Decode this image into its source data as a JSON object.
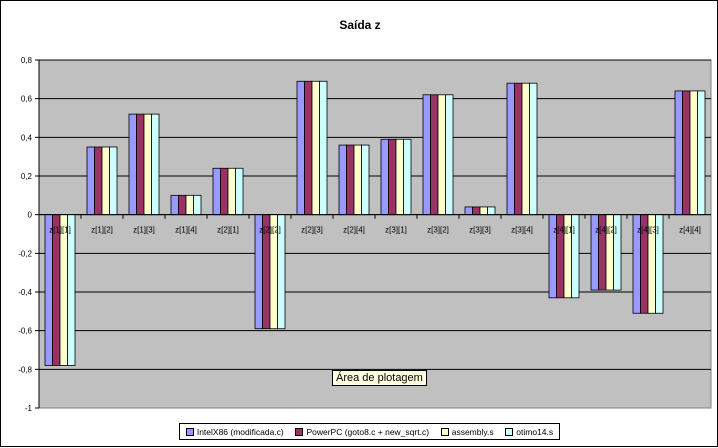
{
  "chart_data": {
    "type": "bar",
    "title": "Saída z",
    "xlabel": "",
    "ylabel": "",
    "ylim": [
      -1,
      0.8
    ],
    "yticks": [
      0.8,
      0.6,
      0.4,
      0.2,
      0,
      -0.2,
      -0.4,
      -0.6,
      -0.8,
      -1
    ],
    "ytick_labels": [
      "0,8",
      "0,6",
      "0,4",
      "0,2",
      "0",
      "-0,2",
      "-0,4",
      "-0,6",
      "-0,8",
      "-1"
    ],
    "grid": "horizontal major",
    "legend_position": "bottom",
    "plot_background": "#c0c0c0",
    "categories": [
      "z[1][1]",
      "z[1][2]",
      "z[1][3]",
      "z[1][4]",
      "z[2][1]",
      "z[2][2]",
      "z[2][3]",
      "z[2][4]",
      "z[3][1]",
      "z[3][2]",
      "z[3][3]",
      "z[3][4]",
      "z[4][1]",
      "z[4][2]",
      "z[4][3]",
      "z[4][4]"
    ],
    "series": [
      {
        "name": "IntelX86 (modificada.c)",
        "color": "#9999ff",
        "values": [
          -0.78,
          0.35,
          0.52,
          0.1,
          0.24,
          -0.59,
          0.69,
          0.36,
          0.39,
          0.62,
          0.04,
          0.68,
          -0.43,
          -0.39,
          -0.51,
          0.64
        ]
      },
      {
        "name": "PowerPC (goto8.c + new_sqrt.c)",
        "color": "#993366",
        "values": [
          -0.78,
          0.35,
          0.52,
          0.1,
          0.24,
          -0.59,
          0.69,
          0.36,
          0.39,
          0.62,
          0.04,
          0.68,
          -0.43,
          -0.39,
          -0.51,
          0.64
        ]
      },
      {
        "name": "assembly.s",
        "color": "#ffffcc",
        "values": [
          -0.78,
          0.35,
          0.52,
          0.1,
          0.24,
          -0.59,
          0.69,
          0.36,
          0.39,
          0.62,
          0.04,
          0.68,
          -0.43,
          -0.39,
          -0.51,
          0.64
        ]
      },
      {
        "name": "otimo14.s",
        "color": "#ccffff",
        "values": [
          -0.78,
          0.35,
          0.52,
          0.1,
          0.24,
          -0.59,
          0.69,
          0.36,
          0.39,
          0.62,
          0.04,
          0.68,
          -0.43,
          -0.39,
          -0.51,
          0.64
        ]
      }
    ]
  },
  "tooltip": {
    "text": "Área de plotagem"
  }
}
